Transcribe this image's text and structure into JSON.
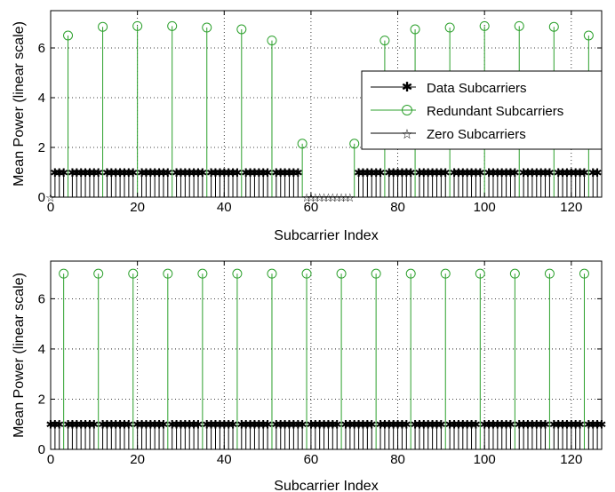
{
  "chart_data": [
    {
      "type": "stem",
      "xlabel": "Subcarrier Index",
      "ylabel": "Mean Power (linear scale)",
      "xlim": [
        0,
        127
      ],
      "ylim": [
        0,
        7.5
      ],
      "xticks": [
        0,
        20,
        40,
        60,
        80,
        100,
        120
      ],
      "yticks": [
        0,
        2,
        4,
        6
      ],
      "grid": true,
      "legend": "top-right",
      "series": [
        {
          "name": "Data Subcarriers",
          "marker": "asterisk",
          "color": "#000000",
          "x_ranges": [
            [
              1,
              3
            ],
            [
              5,
              11
            ],
            [
              13,
              19
            ],
            [
              21,
              27
            ],
            [
              29,
              35
            ],
            [
              37,
              43
            ],
            [
              45,
              50
            ],
            [
              52,
              57
            ],
            [
              71,
              76
            ],
            [
              78,
              83
            ],
            [
              85,
              91
            ],
            [
              93,
              99
            ],
            [
              101,
              107
            ],
            [
              109,
              115
            ],
            [
              117,
              123
            ],
            [
              125,
              126
            ]
          ],
          "value": 1.0
        },
        {
          "name": "Redundant Subcarriers",
          "marker": "circle",
          "color": "#2ca02c",
          "x": [
            4,
            12,
            20,
            28,
            36,
            44,
            51,
            58,
            70,
            77,
            84,
            92,
            100,
            108,
            116,
            124
          ],
          "values": [
            6.5,
            6.85,
            6.88,
            6.88,
            6.82,
            6.75,
            6.3,
            2.15,
            2.15,
            6.3,
            6.75,
            6.82,
            6.88,
            6.88,
            6.85,
            6.5
          ]
        },
        {
          "name": "Zero Subcarriers",
          "marker": "star",
          "color": "#000000",
          "x": [
            0,
            59,
            60,
            61,
            62,
            63,
            64,
            65,
            66,
            67,
            68,
            69
          ],
          "value": 0
        }
      ]
    },
    {
      "type": "stem",
      "xlabel": "Subcarrier Index",
      "ylabel": "Mean Power (linear scale)",
      "xlim": [
        0,
        127
      ],
      "ylim": [
        0,
        7.5
      ],
      "xticks": [
        0,
        20,
        40,
        60,
        80,
        100,
        120
      ],
      "yticks": [
        0,
        2,
        4,
        6
      ],
      "grid": true,
      "series": [
        {
          "marker": "asterisk",
          "color": "#000000",
          "x_ranges": [
            [
              0,
              2
            ],
            [
              4,
              10
            ],
            [
              12,
              18
            ],
            [
              20,
              26
            ],
            [
              28,
              34
            ],
            [
              36,
              42
            ],
            [
              44,
              50
            ],
            [
              52,
              58
            ],
            [
              60,
              66
            ],
            [
              68,
              74
            ],
            [
              76,
              82
            ],
            [
              84,
              90
            ],
            [
              92,
              98
            ],
            [
              100,
              106
            ],
            [
              108,
              114
            ],
            [
              116,
              122
            ],
            [
              124,
              127
            ]
          ],
          "value": 1.0
        },
        {
          "marker": "circle",
          "color": "#2ca02c",
          "x": [
            3,
            11,
            19,
            27,
            35,
            43,
            51,
            59,
            67,
            75,
            83,
            91,
            99,
            107,
            115,
            123
          ],
          "value": 7.0
        }
      ]
    }
  ]
}
